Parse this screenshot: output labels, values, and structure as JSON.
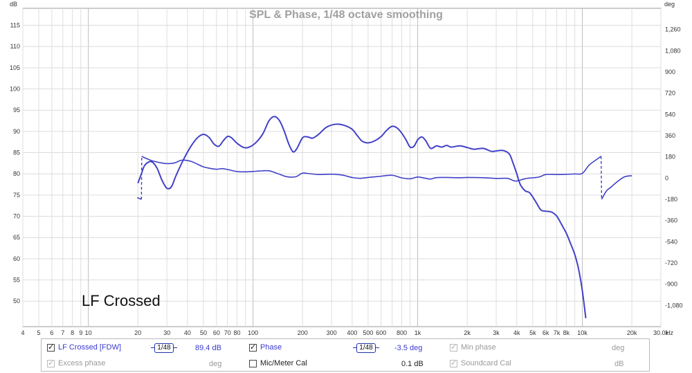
{
  "chart_data": {
    "type": "line",
    "title": "SPL & Phase, 1/48 octave smoothing",
    "left_axis_unit": "dB",
    "right_axis_unit": "deg",
    "x_unit": "Hz",
    "xscale": "log",
    "xlim": [
      4,
      30000
    ],
    "ylim_left": [
      44,
      119
    ],
    "ylim_right": [
      -1260,
      1440
    ],
    "left_ticks": [
      {
        "v": 50,
        "label": "50"
      },
      {
        "v": 55,
        "label": "55"
      },
      {
        "v": 60,
        "label": "60"
      },
      {
        "v": 65,
        "label": "65"
      },
      {
        "v": 70,
        "label": "70"
      },
      {
        "v": 75,
        "label": "75"
      },
      {
        "v": 80,
        "label": "80"
      },
      {
        "v": 85,
        "label": "85"
      },
      {
        "v": 90,
        "label": "90"
      },
      {
        "v": 95,
        "label": "95"
      },
      {
        "v": 100,
        "label": "100"
      },
      {
        "v": 105,
        "label": "105"
      },
      {
        "v": 110,
        "label": "110"
      },
      {
        "v": 115,
        "label": "115"
      }
    ],
    "right_ticks": [
      {
        "v": 1260,
        "label": "1,260"
      },
      {
        "v": 1080,
        "label": "1,080"
      },
      {
        "v": 900,
        "label": "900"
      },
      {
        "v": 720,
        "label": "720"
      },
      {
        "v": 540,
        "label": "540"
      },
      {
        "v": 360,
        "label": "360"
      },
      {
        "v": 180,
        "label": "180"
      },
      {
        "v": 0,
        "label": "0"
      },
      {
        "v": -180,
        "label": "-180"
      },
      {
        "v": -360,
        "label": "-360"
      },
      {
        "v": -540,
        "label": "-540"
      },
      {
        "v": -720,
        "label": "-720"
      },
      {
        "v": -900,
        "label": "-900"
      },
      {
        "v": -1080,
        "label": "-1,080"
      }
    ],
    "x_ticks": [
      {
        "v": 4,
        "label": "4"
      },
      {
        "v": 5,
        "label": "5"
      },
      {
        "v": 6,
        "label": "6"
      },
      {
        "v": 7,
        "label": "7"
      },
      {
        "v": 8,
        "label": "8"
      },
      {
        "v": 9,
        "label": "9"
      },
      {
        "v": 10,
        "label": "10"
      },
      {
        "v": 20,
        "label": "20"
      },
      {
        "v": 30,
        "label": "30"
      },
      {
        "v": 40,
        "label": "40"
      },
      {
        "v": 50,
        "label": "50"
      },
      {
        "v": 60,
        "label": "60"
      },
      {
        "v": 70,
        "label": "70"
      },
      {
        "v": 80,
        "label": "80"
      },
      {
        "v": 100,
        "label": "100"
      },
      {
        "v": 200,
        "label": "200"
      },
      {
        "v": 300,
        "label": "300"
      },
      {
        "v": 400,
        "label": "400"
      },
      {
        "v": 500,
        "label": "500"
      },
      {
        "v": 600,
        "label": "600"
      },
      {
        "v": 800,
        "label": "800"
      },
      {
        "v": 1000,
        "label": "1k"
      },
      {
        "v": 2000,
        "label": "2k"
      },
      {
        "v": 3000,
        "label": "3k"
      },
      {
        "v": 4000,
        "label": "4k"
      },
      {
        "v": 5000,
        "label": "5k"
      },
      {
        "v": 6000,
        "label": "6k"
      },
      {
        "v": 7000,
        "label": "7k"
      },
      {
        "v": 8000,
        "label": "8k"
      },
      {
        "v": 10000,
        "label": "10k"
      },
      {
        "v": 20000,
        "label": "20k"
      },
      {
        "v": 30000,
        "label": "30.0k"
      }
    ],
    "grid": true,
    "annotation": "LF Crossed",
    "series": [
      {
        "name": "LF Crossed [FDW]",
        "axis": "left",
        "color": "#4040c8",
        "points": [
          [
            20,
            77.8
          ],
          [
            21,
            80
          ],
          [
            22,
            82
          ],
          [
            24,
            82.9
          ],
          [
            26,
            81.5
          ],
          [
            28,
            78.5
          ],
          [
            30,
            76.6
          ],
          [
            32,
            77
          ],
          [
            34,
            79.5
          ],
          [
            38,
            83.5
          ],
          [
            42,
            86.5
          ],
          [
            46,
            88.5
          ],
          [
            50,
            89.3
          ],
          [
            54,
            88.6
          ],
          [
            58,
            87
          ],
          [
            62,
            86.5
          ],
          [
            66,
            87.8
          ],
          [
            70,
            88.8
          ],
          [
            74,
            88.5
          ],
          [
            80,
            87.2
          ],
          [
            88,
            86.2
          ],
          [
            95,
            86.3
          ],
          [
            105,
            87.5
          ],
          [
            115,
            89.5
          ],
          [
            125,
            92.5
          ],
          [
            135,
            93.5
          ],
          [
            145,
            92.5
          ],
          [
            155,
            90
          ],
          [
            165,
            87
          ],
          [
            175,
            85.2
          ],
          [
            185,
            86
          ],
          [
            200,
            88.5
          ],
          [
            215,
            88.7
          ],
          [
            230,
            88.4
          ],
          [
            250,
            89.3
          ],
          [
            280,
            91
          ],
          [
            320,
            91.7
          ],
          [
            360,
            91.4
          ],
          [
            400,
            90.5
          ],
          [
            430,
            89
          ],
          [
            460,
            87.7
          ],
          [
            500,
            87.3
          ],
          [
            550,
            87.8
          ],
          [
            600,
            88.8
          ],
          [
            650,
            90.3
          ],
          [
            700,
            91.2
          ],
          [
            750,
            90.8
          ],
          [
            800,
            89.6
          ],
          [
            850,
            88
          ],
          [
            900,
            86.3
          ],
          [
            950,
            86.5
          ],
          [
            1000,
            88
          ],
          [
            1060,
            88.7
          ],
          [
            1120,
            87.8
          ],
          [
            1200,
            86
          ],
          [
            1300,
            86.6
          ],
          [
            1400,
            86.3
          ],
          [
            1500,
            86.7
          ],
          [
            1600,
            86.3
          ],
          [
            1800,
            86.6
          ],
          [
            2000,
            86.2
          ],
          [
            2200,
            85.8
          ],
          [
            2500,
            86
          ],
          [
            2800,
            85.3
          ],
          [
            3000,
            85.4
          ],
          [
            3300,
            85.5
          ],
          [
            3600,
            84.7
          ],
          [
            3800,
            82.5
          ],
          [
            4000,
            80
          ],
          [
            4200,
            77.5
          ],
          [
            4500,
            76
          ],
          [
            4800,
            75.5
          ],
          [
            5200,
            73.5
          ],
          [
            5600,
            71.5
          ],
          [
            6000,
            71.2
          ],
          [
            6500,
            71
          ],
          [
            7000,
            70
          ],
          [
            7500,
            68
          ],
          [
            8000,
            66
          ],
          [
            8500,
            63.5
          ],
          [
            9000,
            61
          ],
          [
            9500,
            57.5
          ],
          [
            10000,
            52.5
          ],
          [
            10500,
            46
          ]
        ]
      },
      {
        "name": "Phase",
        "axis": "right",
        "color": "#4040c8",
        "points": [
          [
            19.8,
            -165
          ],
          [
            21,
            -180
          ],
          [
            21.1,
            185
          ],
          [
            22,
            172
          ],
          [
            24,
            150
          ],
          [
            26,
            137
          ],
          [
            28,
            128
          ],
          [
            30,
            123
          ],
          [
            32,
            124
          ],
          [
            34,
            132
          ],
          [
            36,
            148
          ],
          [
            38,
            153
          ],
          [
            42,
            142
          ],
          [
            46,
            118
          ],
          [
            50,
            95
          ],
          [
            55,
            82
          ],
          [
            60,
            75
          ],
          [
            65,
            80
          ],
          [
            70,
            73
          ],
          [
            80,
            55
          ],
          [
            90,
            53
          ],
          [
            100,
            56
          ],
          [
            110,
            60
          ],
          [
            125,
            62
          ],
          [
            140,
            40
          ],
          [
            160,
            12
          ],
          [
            180,
            10
          ],
          [
            190,
            25
          ],
          [
            200,
            42
          ],
          [
            220,
            38
          ],
          [
            250,
            30
          ],
          [
            300,
            33
          ],
          [
            350,
            25
          ],
          [
            400,
            5
          ],
          [
            450,
            -2
          ],
          [
            500,
            5
          ],
          [
            600,
            16
          ],
          [
            700,
            24
          ],
          [
            800,
            2
          ],
          [
            900,
            -6
          ],
          [
            1000,
            9
          ],
          [
            1100,
            0
          ],
          [
            1200,
            -8
          ],
          [
            1300,
            4
          ],
          [
            1500,
            5
          ],
          [
            1800,
            3
          ],
          [
            2000,
            5
          ],
          [
            2500,
            3
          ],
          [
            3000,
            -3
          ],
          [
            3500,
            -2
          ],
          [
            3800,
            -20
          ],
          [
            4000,
            -25
          ],
          [
            4500,
            -5
          ],
          [
            5000,
            2
          ],
          [
            5500,
            10
          ],
          [
            6000,
            30
          ],
          [
            7000,
            30
          ],
          [
            8000,
            32
          ],
          [
            9000,
            35
          ],
          [
            10000,
            40
          ],
          [
            11000,
            110
          ],
          [
            12000,
            150
          ],
          [
            13000,
            185
          ],
          [
            13100,
            -180
          ],
          [
            14000,
            -110
          ],
          [
            15000,
            -75
          ],
          [
            16000,
            -40
          ],
          [
            18000,
            10
          ],
          [
            20000,
            20
          ]
        ]
      }
    ]
  },
  "legend": {
    "row1": [
      {
        "label": "LF Crossed [FDW]",
        "checked": true,
        "smoothing": "1/48",
        "value": "89.4 dB"
      },
      {
        "label": "Phase",
        "checked": true,
        "smoothing": "1/48",
        "value": "-3.5 deg"
      },
      {
        "label": "Min phase",
        "checked": true,
        "value": "deg"
      }
    ],
    "row2": [
      {
        "label": "Excess phase",
        "checked": true,
        "value": "deg"
      },
      {
        "label": "Mic/Meter Cal",
        "checked": false,
        "value": "0.1 dB"
      },
      {
        "label": "Soundcard Cal",
        "checked": true,
        "value": "dB"
      }
    ]
  }
}
